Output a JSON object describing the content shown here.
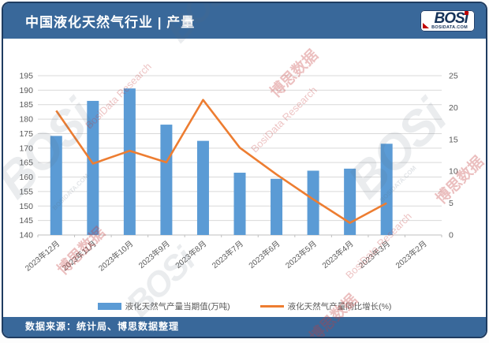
{
  "header": {
    "title": "中国液化天然气行业 | 产量"
  },
  "logo": {
    "text": "BOSi",
    "site": "BOSIDATA.COM"
  },
  "footer": {
    "source": "数据来源：统计局、博思数据整理"
  },
  "watermarks": {
    "logo": "BOSi",
    "cn": "博思数据",
    "en": "BosiData Research",
    "site": "BOSIDATA.COM"
  },
  "chart_data": {
    "type": "bar",
    "title": "中国液化天然气行业 | 产量",
    "categories": [
      "2023年12月",
      "2023年11月",
      "2023年10月",
      "2023年9月",
      "2023年8月",
      "2023年7月",
      "2023年6月",
      "2023年5月",
      "2023年4月",
      "2023年3月",
      "2023年2月"
    ],
    "series": [
      {
        "name": "液化天然气产量当期值(万吨)",
        "type": "bar",
        "axis": "left",
        "color": "#5B9BD5",
        "values": [
          174.2,
          186.3,
          190.6,
          178.1,
          172.5,
          161.5,
          159.4,
          162.2,
          162.9,
          171.5,
          null
        ]
      },
      {
        "name": "液化天然气产量同比增长(%)",
        "type": "line",
        "axis": "right",
        "color": "#ED7D31",
        "values": [
          19.5,
          11.2,
          13.2,
          11.4,
          21.2,
          13.7,
          9.5,
          5.6,
          1.9,
          5.0,
          null
        ]
      }
    ],
    "left_axis": {
      "min": 140,
      "max": 195,
      "step": 5
    },
    "right_axis": {
      "min": 0,
      "max": 25,
      "step": 5
    },
    "grid": true,
    "legend_position": "bottom",
    "xlabel": "",
    "ylabel": ""
  }
}
